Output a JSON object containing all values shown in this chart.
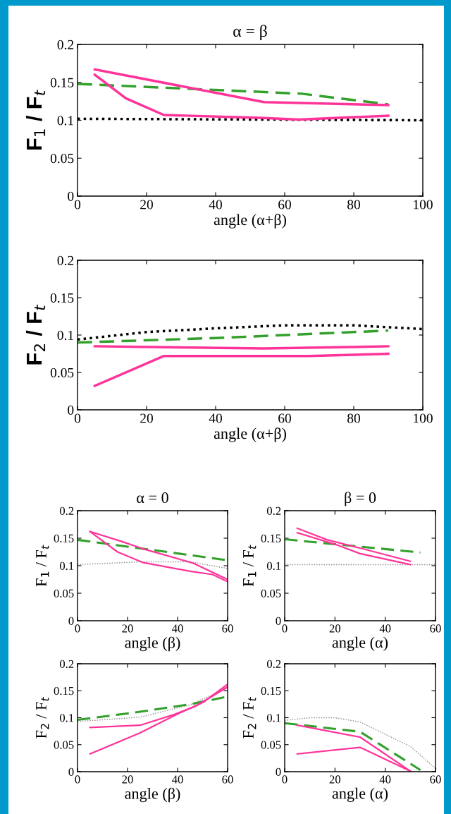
{
  "chart_data": [
    {
      "type": "line",
      "title": "α = β",
      "xlabel": "angle (α+β)",
      "ylabel": "F$_{1}$ / F$_{t}$",
      "xlim": [
        0,
        100
      ],
      "ylim": [
        0,
        0.2
      ],
      "xticks": [
        0,
        20,
        40,
        60,
        80,
        100
      ],
      "yticks": [
        0,
        0.05,
        0.1,
        0.15,
        0.2
      ],
      "series": [
        {
          "color": "#000000",
          "line_style": "dotted",
          "x": [
            0,
            50,
            100
          ],
          "values": [
            0.102,
            0.101,
            0.1
          ]
        },
        {
          "color": "#33a02c",
          "line_style": "dashed",
          "x": [
            0,
            30,
            65,
            90
          ],
          "values": [
            0.148,
            0.142,
            0.135,
            0.121
          ]
        },
        {
          "color": "#ff3399",
          "line_style": "solid",
          "x": [
            5,
            54,
            90
          ],
          "values": [
            0.167,
            0.124,
            0.12
          ]
        },
        {
          "color": "#ff3399",
          "line_style": "solid",
          "x": [
            5,
            14,
            25,
            54,
            64,
            90
          ],
          "values": [
            0.16,
            0.129,
            0.107,
            0.103,
            0.101,
            0.106
          ]
        }
      ]
    },
    {
      "type": "line",
      "xlabel": "angle (α+β)",
      "ylabel": "F$_{2}$ / F$_{t}$",
      "xlim": [
        0,
        100
      ],
      "ylim": [
        0,
        0.2
      ],
      "xticks": [
        0,
        20,
        40,
        60,
        80,
        100
      ],
      "yticks": [
        0,
        0.05,
        0.1,
        0.15,
        0.2
      ],
      "series": [
        {
          "color": "#000000",
          "line_style": "dotted",
          "x": [
            0,
            20,
            40,
            60,
            80,
            100
          ],
          "values": [
            0.094,
            0.104,
            0.109,
            0.113,
            0.113,
            0.108
          ]
        },
        {
          "color": "#33a02c",
          "line_style": "dashed",
          "x": [
            0,
            40,
            60,
            90
          ],
          "values": [
            0.09,
            0.096,
            0.1,
            0.106
          ]
        },
        {
          "color": "#ff3399",
          "line_style": "solid",
          "x": [
            5,
            54,
            90
          ],
          "values": [
            0.085,
            0.082,
            0.085
          ]
        },
        {
          "color": "#ff3399",
          "line_style": "solid",
          "x": [
            5,
            25,
            67,
            90
          ],
          "values": [
            0.032,
            0.072,
            0.072,
            0.075
          ]
        }
      ]
    },
    {
      "type": "line",
      "title": "α = 0",
      "xlabel": "angle (β)",
      "ylabel": "F$_{1}$ / F$_{t}$",
      "xlim": [
        0,
        60
      ],
      "ylim": [
        0,
        0.2
      ],
      "xticks": [
        0,
        20,
        40,
        60
      ],
      "yticks": [
        0,
        0.05,
        0.1,
        0.15,
        0.2
      ],
      "series": [
        {
          "color": "#888888",
          "line_style": "dotted",
          "x": [
            0,
            25,
            45,
            60
          ],
          "values": [
            0.102,
            0.107,
            0.107,
            0.095
          ]
        },
        {
          "color": "#33a02c",
          "line_style": "dashed",
          "x": [
            0,
            60
          ],
          "values": [
            0.147,
            0.11
          ]
        },
        {
          "color": "#ff3399",
          "line_style": "solid",
          "x": [
            5,
            17,
            26,
            46,
            60
          ],
          "values": [
            0.162,
            0.145,
            0.131,
            0.105,
            0.075
          ]
        },
        {
          "color": "#ff3399",
          "line_style": "solid",
          "x": [
            5,
            16,
            26,
            45,
            54,
            60
          ],
          "values": [
            0.162,
            0.125,
            0.106,
            0.09,
            0.084,
            0.071
          ]
        }
      ]
    },
    {
      "type": "line",
      "title": "β = 0",
      "xlabel": "angle (α)",
      "ylabel": "F$_{1}$ / F$_{t}$",
      "xlim": [
        0,
        60
      ],
      "ylim": [
        0,
        0.2
      ],
      "xticks": [
        0,
        20,
        40,
        60
      ],
      "yticks": [
        0,
        0.05,
        0.1,
        0.15,
        0.2
      ],
      "series": [
        {
          "color": "#888888",
          "line_style": "dotted",
          "x": [
            0,
            60
          ],
          "values": [
            0.102,
            0.102
          ]
        },
        {
          "color": "#33a02c",
          "line_style": "dashed",
          "x": [
            0,
            54
          ],
          "values": [
            0.148,
            0.124
          ]
        },
        {
          "color": "#ff3399",
          "line_style": "solid",
          "x": [
            5,
            17,
            30,
            50
          ],
          "values": [
            0.168,
            0.147,
            0.132,
            0.108
          ]
        },
        {
          "color": "#ff3399",
          "line_style": "solid",
          "x": [
            5,
            20,
            30,
            50
          ],
          "values": [
            0.16,
            0.139,
            0.122,
            0.102
          ]
        }
      ]
    },
    {
      "type": "line",
      "xlabel": "angle (β)",
      "ylabel": "F$_{2}$ / F$_{t}$",
      "xlim": [
        0,
        60
      ],
      "ylim": [
        0,
        0.2
      ],
      "xticks": [
        0,
        20,
        40,
        60
      ],
      "yticks": [
        0,
        0.05,
        0.1,
        0.15,
        0.2
      ],
      "series": [
        {
          "color": "#888888",
          "line_style": "dotted",
          "x": [
            0,
            25,
            45,
            60
          ],
          "values": [
            0.093,
            0.101,
            0.124,
            0.155
          ]
        },
        {
          "color": "#33a02c",
          "line_style": "dashed",
          "x": [
            0,
            25,
            45,
            60
          ],
          "values": [
            0.096,
            0.111,
            0.125,
            0.139
          ]
        },
        {
          "color": "#ff3399",
          "line_style": "solid",
          "x": [
            5,
            25,
            38,
            47,
            60
          ],
          "values": [
            0.082,
            0.086,
            0.105,
            0.121,
            0.157
          ]
        },
        {
          "color": "#ff3399",
          "line_style": "solid",
          "x": [
            5,
            25,
            40,
            50,
            60
          ],
          "values": [
            0.033,
            0.072,
            0.107,
            0.128,
            0.162
          ]
        }
      ]
    },
    {
      "type": "line",
      "xlabel": "angle (α)",
      "ylabel": "F$_{2}$ / F$_{t}$",
      "xlim": [
        0,
        60
      ],
      "ylim": [
        0,
        0.2
      ],
      "xticks": [
        0,
        20,
        40,
        60
      ],
      "yticks": [
        0,
        0.05,
        0.1,
        0.15,
        0.2
      ],
      "series": [
        {
          "color": "#888888",
          "line_style": "dotted",
          "x": [
            0,
            10,
            20,
            30,
            45,
            50,
            60
          ],
          "values": [
            0.095,
            0.1,
            0.1,
            0.092,
            0.058,
            0.047,
            0.006
          ]
        },
        {
          "color": "#33a02c",
          "line_style": "dashed",
          "x": [
            0,
            30,
            54
          ],
          "values": [
            0.09,
            0.074,
            0.003
          ]
        },
        {
          "color": "#ff3399",
          "line_style": "solid",
          "x": [
            5,
            30,
            50
          ],
          "values": [
            0.086,
            0.064,
            0.001
          ]
        },
        {
          "color": "#ff3399",
          "line_style": "solid",
          "x": [
            5,
            30,
            50
          ],
          "values": [
            0.033,
            0.045,
            0.001
          ]
        }
      ]
    }
  ]
}
